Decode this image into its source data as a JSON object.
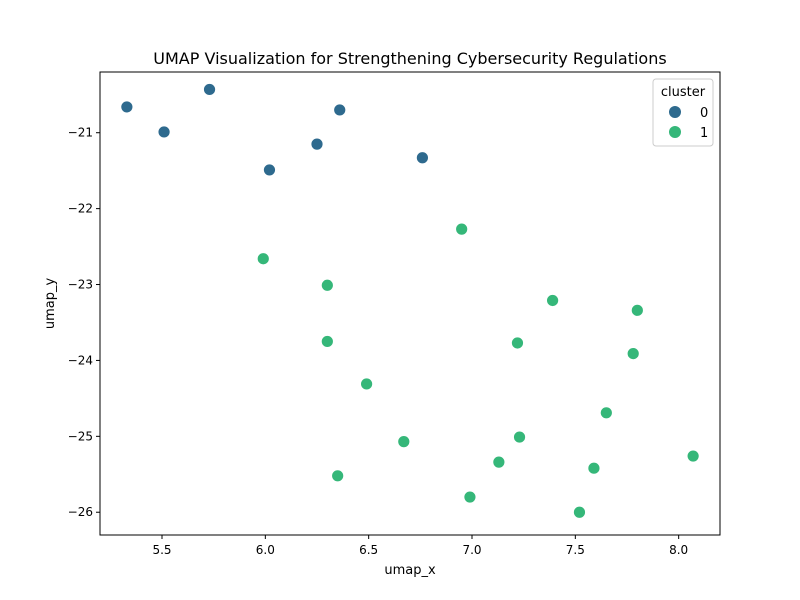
{
  "chart_data": {
    "type": "scatter",
    "title": "UMAP Visualization for Strengthening Cybersecurity Regulations",
    "xlabel": "umap_x",
    "ylabel": "umap_y",
    "xlim": [
      5.2,
      8.2
    ],
    "ylim": [
      -26.3,
      -20.2
    ],
    "x_ticks": [
      "5.5",
      "6.0",
      "6.5",
      "7.0",
      "7.5",
      "8.0"
    ],
    "y_ticks": [
      "−21",
      "−22",
      "−23",
      "−24",
      "−25",
      "−26"
    ],
    "grid": false,
    "legend": {
      "title": "cluster",
      "placement": "top-right",
      "entries": [
        "0",
        "1"
      ]
    },
    "series": [
      {
        "name": "0",
        "color": "#2e6a8e",
        "points": [
          [
            5.33,
            -20.66
          ],
          [
            5.51,
            -20.99
          ],
          [
            5.73,
            -20.43
          ],
          [
            6.02,
            -21.49
          ],
          [
            6.25,
            -21.15
          ],
          [
            6.36,
            -20.7
          ],
          [
            6.76,
            -21.33
          ]
        ]
      },
      {
        "name": "1",
        "color": "#35b779",
        "points": [
          [
            5.99,
            -22.66
          ],
          [
            6.3,
            -23.01
          ],
          [
            6.3,
            -23.75
          ],
          [
            6.35,
            -25.52
          ],
          [
            6.49,
            -24.31
          ],
          [
            6.67,
            -25.07
          ],
          [
            6.95,
            -22.27
          ],
          [
            6.99,
            -25.8
          ],
          [
            7.13,
            -25.34
          ],
          [
            7.22,
            -23.77
          ],
          [
            7.23,
            -25.01
          ],
          [
            7.39,
            -23.21
          ],
          [
            7.52,
            -26.0
          ],
          [
            7.59,
            -25.42
          ],
          [
            7.65,
            -24.69
          ],
          [
            7.78,
            -23.91
          ],
          [
            7.8,
            -23.34
          ],
          [
            8.07,
            -25.26
          ]
        ]
      }
    ]
  }
}
